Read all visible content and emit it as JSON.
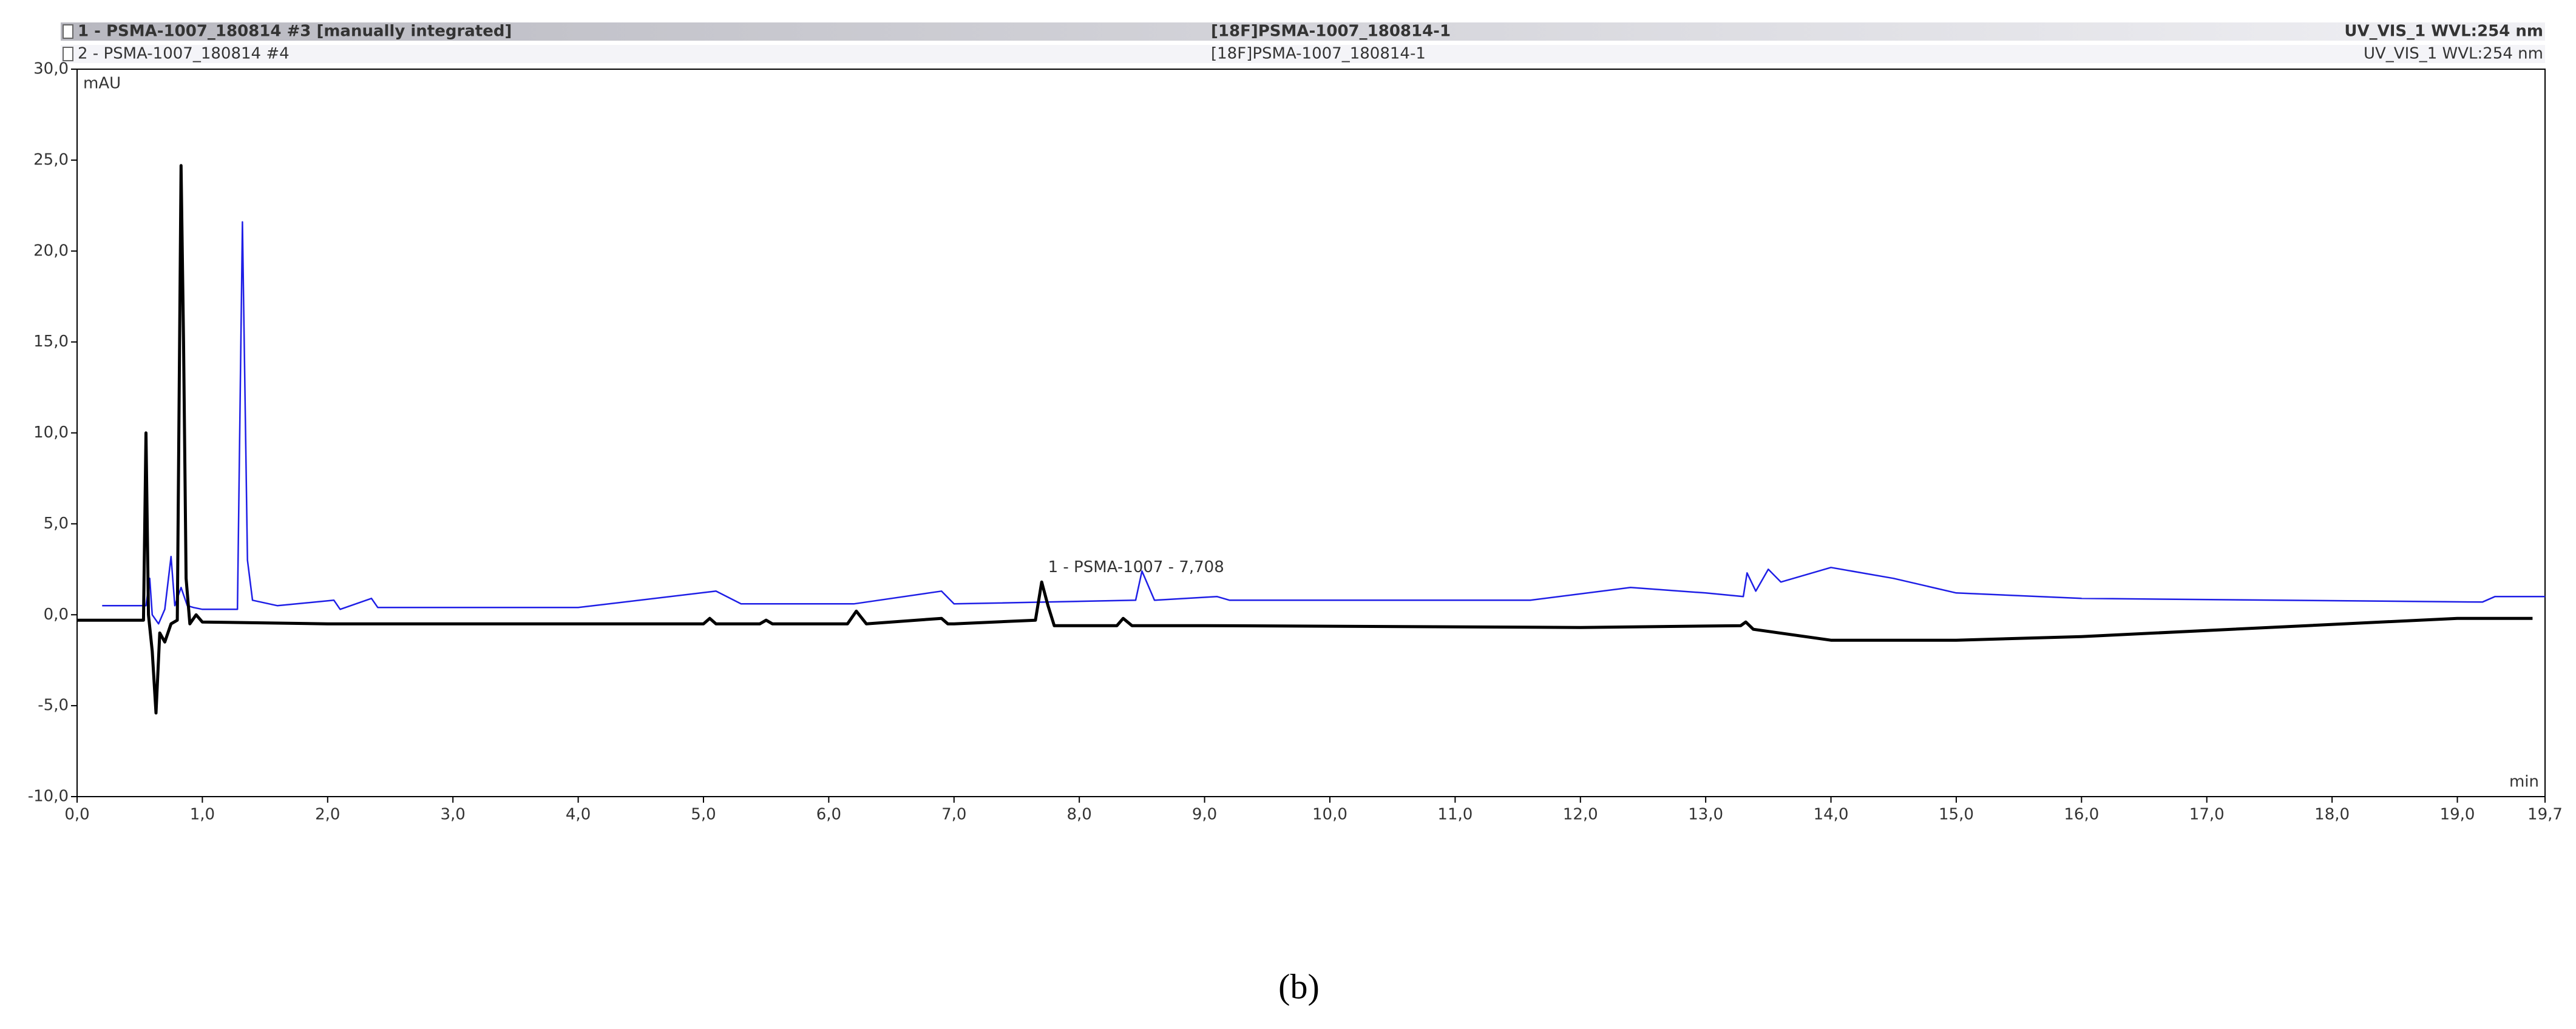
{
  "chart_data": {
    "type": "line",
    "y_unit": "mAU",
    "x_unit": "min",
    "annotation": "1 - PSMA-1007 - 7,708",
    "caption": "(b)",
    "series": [
      {
        "name": "1 - PSMA-1007_180814 #3 [manually integrated]",
        "sample": "[18F]PSMA-1007_180814-1",
        "channel": "UV_VIS_1 WVL:254 nm",
        "color": "#000000",
        "x": [
          0.0,
          0.5,
          0.53,
          0.55,
          0.57,
          0.6,
          0.63,
          0.66,
          0.7,
          0.75,
          0.8,
          0.83,
          0.85,
          0.87,
          0.9,
          0.95,
          1.0,
          2.0,
          4.0,
          5.0,
          5.05,
          5.1,
          5.45,
          5.5,
          5.55,
          6.15,
          6.22,
          6.3,
          6.9,
          6.95,
          7.0,
          7.65,
          7.7,
          7.75,
          7.8,
          8.3,
          8.35,
          8.42,
          9.0,
          12.0,
          13.28,
          13.32,
          13.38,
          14.0,
          15.0,
          16.0,
          19.0,
          19.6
        ],
        "values": [
          -0.3,
          -0.3,
          -0.3,
          10.0,
          0.0,
          -2.0,
          -5.4,
          -1.0,
          -1.5,
          -0.5,
          -0.3,
          24.7,
          15.0,
          2.0,
          -0.5,
          0.0,
          -0.4,
          -0.5,
          -0.5,
          -0.5,
          -0.2,
          -0.5,
          -0.5,
          -0.3,
          -0.5,
          -0.5,
          0.2,
          -0.5,
          -0.2,
          -0.5,
          -0.5,
          -0.3,
          1.8,
          0.5,
          -0.6,
          -0.6,
          -0.2,
          -0.6,
          -0.6,
          -0.7,
          -0.6,
          -0.4,
          -0.8,
          -1.4,
          -1.4,
          -1.2,
          -0.2,
          -0.2
        ]
      },
      {
        "name": "2 - PSMA-1007_180814 #4",
        "sample": "[18F]PSMA-1007_180814-1",
        "channel": "UV_VIS_1 WVL:254 nm",
        "color": "#1e1ee6",
        "x": [
          0.2,
          0.55,
          0.58,
          0.6,
          0.65,
          0.7,
          0.75,
          0.78,
          0.83,
          0.88,
          0.93,
          1.0,
          1.28,
          1.32,
          1.36,
          1.4,
          1.6,
          2.05,
          2.1,
          2.35,
          2.4,
          4.0,
          5.1,
          5.3,
          5.7,
          6.2,
          6.9,
          7.0,
          8.45,
          8.5,
          8.6,
          9.1,
          9.2,
          11.6,
          12.4,
          13.0,
          13.3,
          13.33,
          13.4,
          13.5,
          13.6,
          14.0,
          14.5,
          15.0,
          16.0,
          19.2,
          19.3,
          19.7
        ],
        "values": [
          0.5,
          0.5,
          2.0,
          0.0,
          -0.5,
          0.3,
          3.2,
          0.5,
          1.5,
          0.5,
          0.4,
          0.3,
          0.3,
          21.6,
          3.0,
          0.8,
          0.5,
          0.8,
          0.3,
          0.9,
          0.4,
          0.4,
          1.3,
          0.6,
          0.6,
          0.6,
          1.3,
          0.6,
          0.8,
          2.4,
          0.8,
          1.0,
          0.8,
          0.8,
          1.5,
          1.2,
          1.0,
          2.3,
          1.3,
          2.5,
          1.8,
          2.6,
          2.0,
          1.2,
          0.9,
          0.7,
          1.0,
          1.0
        ]
      }
    ],
    "xlim": [
      0,
      19.7
    ],
    "ylim": [
      -10,
      30
    ],
    "xticks": [
      {
        "value": 0,
        "label": "0,0"
      },
      {
        "value": 1,
        "label": "1,0"
      },
      {
        "value": 2,
        "label": "2,0"
      },
      {
        "value": 3,
        "label": "3,0"
      },
      {
        "value": 4,
        "label": "4,0"
      },
      {
        "value": 5,
        "label": "5,0"
      },
      {
        "value": 6,
        "label": "6,0"
      },
      {
        "value": 7,
        "label": "7,0"
      },
      {
        "value": 8,
        "label": "8,0"
      },
      {
        "value": 9,
        "label": "9,0"
      },
      {
        "value": 10,
        "label": "10,0"
      },
      {
        "value": 11,
        "label": "11,0"
      },
      {
        "value": 12,
        "label": "12,0"
      },
      {
        "value": 13,
        "label": "13,0"
      },
      {
        "value": 14,
        "label": "14,0"
      },
      {
        "value": 15,
        "label": "15,0"
      },
      {
        "value": 16,
        "label": "16,0"
      },
      {
        "value": 17,
        "label": "17,0"
      },
      {
        "value": 18,
        "label": "18,0"
      },
      {
        "value": 19,
        "label": "19,0"
      },
      {
        "value": 19.7,
        "label": "19,7"
      }
    ],
    "yticks": [
      {
        "value": -10,
        "label": "-10,0"
      },
      {
        "value": -5,
        "label": "-5,0"
      },
      {
        "value": 0,
        "label": "0,0"
      },
      {
        "value": 5,
        "label": "5,0"
      },
      {
        "value": 10,
        "label": "10,0"
      },
      {
        "value": 15,
        "label": "15,0"
      },
      {
        "value": 20,
        "label": "20,0"
      },
      {
        "value": 25,
        "label": "25,0"
      },
      {
        "value": 30,
        "label": "30,0"
      }
    ]
  }
}
